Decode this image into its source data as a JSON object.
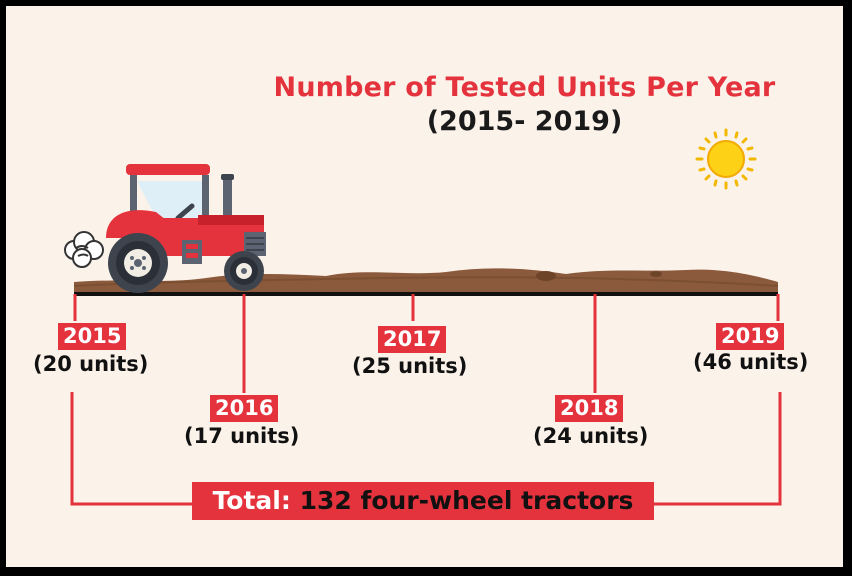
{
  "title": "Number of Tested Units Per Year",
  "subtitle": "(2015- 2019)",
  "years": [
    {
      "year": "2015",
      "units": "(20 units)"
    },
    {
      "year": "2016",
      "units": "(17 units)"
    },
    {
      "year": "2017",
      "units": "(25 units)"
    },
    {
      "year": "2018",
      "units": "(24 units)"
    },
    {
      "year": "2019",
      "units": "(46 units)"
    }
  ],
  "total": {
    "label": "Total:",
    "value": "132 four-wheel tractors"
  },
  "colors": {
    "accent": "#e4333d",
    "soil": "#8b5a3c",
    "background": "#fbf2ea",
    "sun": "#fcd116"
  },
  "icons": {
    "vehicle": "tractor-icon",
    "weather": "sun-icon",
    "exhaust": "smoke-cloud-icon"
  }
}
